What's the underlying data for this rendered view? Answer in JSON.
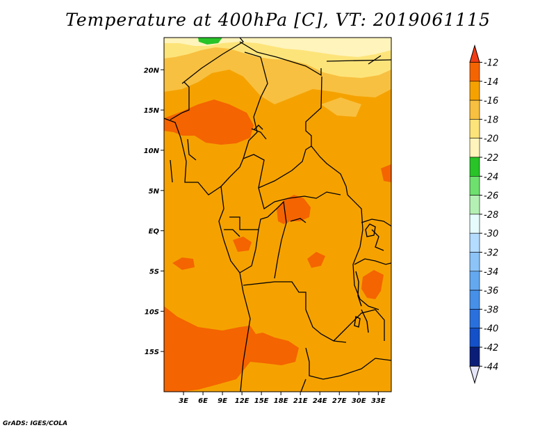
{
  "title": "Temperature at 400hPa [C], VT: 2019061115",
  "credit": "GrADS: IGES/COLA",
  "map": {
    "variable": "Temperature",
    "level": "400hPa",
    "units": "C",
    "valid_time": "2019061115",
    "lon_range": [
      0,
      35
    ],
    "lat_range": [
      -20,
      24
    ],
    "lat_ticks": [
      {
        "value": 20,
        "label": "20N"
      },
      {
        "value": 15,
        "label": "15N"
      },
      {
        "value": 10,
        "label": "10N"
      },
      {
        "value": 5,
        "label": "5N"
      },
      {
        "value": 0,
        "label": "EQ"
      },
      {
        "value": -5,
        "label": "5S"
      },
      {
        "value": -10,
        "label": "10S"
      },
      {
        "value": -15,
        "label": "15S"
      }
    ],
    "lon_ticks": [
      {
        "value": 3,
        "label": "3E"
      },
      {
        "value": 6,
        "label": "6E"
      },
      {
        "value": 9,
        "label": "9E"
      },
      {
        "value": 12,
        "label": "12E"
      },
      {
        "value": 15,
        "label": "15E"
      },
      {
        "value": 18,
        "label": "18E"
      },
      {
        "value": 21,
        "label": "21E"
      },
      {
        "value": 24,
        "label": "24E"
      },
      {
        "value": 27,
        "label": "27E"
      },
      {
        "value": 30,
        "label": "30E"
      },
      {
        "value": 33,
        "label": "33E"
      }
    ],
    "background_color": "#f5a200"
  },
  "colorbar": {
    "labels": [
      "-12",
      "-14",
      "-16",
      "-18",
      "-20",
      "-22",
      "-24",
      "-26",
      "-28",
      "-30",
      "-32",
      "-34",
      "-36",
      "-38",
      "-40",
      "-42",
      "-44"
    ],
    "top_arrow_color": "#f03c14",
    "bottom_arrow_color": "#e6e6fa",
    "colors": [
      "#f46400",
      "#f5a200",
      "#f8c040",
      "#fde47a",
      "#fff4bb",
      "#28c428",
      "#6ee06e",
      "#b4f0b4",
      "#e6fbfb",
      "#b4dcff",
      "#8cc4f8",
      "#64a8f0",
      "#4690e8",
      "#2a70dc",
      "#1450c8",
      "#0a1e78"
    ]
  }
}
